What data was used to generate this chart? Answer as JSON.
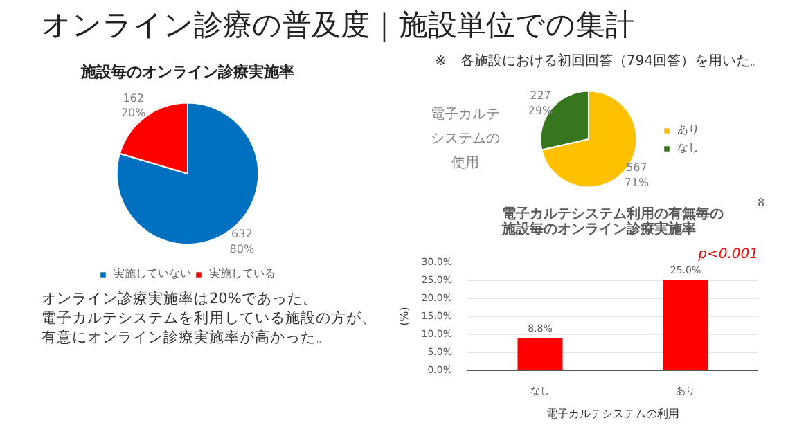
{
  "chart_data": [
    {
      "type": "other",
      "title": "オンライン診療の普及度｜施設単位での集計",
      "annotations": [
        "※　各施設における初回回答（794回答）を用いた。",
        "オンライン診療実施率は20%であった。",
        "電子カルテシステムを利用している施設の方が、",
        "有意にオンライン診療実施率が高かった。",
        "8"
      ]
    },
    {
      "type": "pie",
      "title": "施設毎のオンライン診療実施率",
      "categories": [
        "実施していない",
        "実施している"
      ],
      "values": [
        632,
        162
      ],
      "colors": [
        "#0070c0",
        "#ff0000"
      ],
      "value_labels": [
        "632\n80%",
        "162\n20%"
      ],
      "legend": "bottom"
    },
    {
      "type": "pie",
      "title": "電子カルテシステムの使用",
      "categories": [
        "あり",
        "なし"
      ],
      "values": [
        567,
        227
      ],
      "colors": [
        "#ffc000",
        "#38761d"
      ],
      "value_labels": [
        "567\n71%",
        "227\n29%"
      ],
      "legend": "right"
    },
    {
      "type": "bar",
      "title": "電子カルテシステム利用の有無毎の施設毎のオンライン診療実施率",
      "categories": [
        "なし",
        "あり"
      ],
      "values": [
        8.8,
        25.0
      ],
      "color": "#ff0000",
      "value_labels": [
        "8.8%",
        "25.0%"
      ],
      "xlabel": "電子カルテシステムの利用",
      "ylabel": "(%)",
      "ylim": [
        0,
        30
      ],
      "yticks": [
        {
          "value": 0,
          "label": "0.0%"
        },
        {
          "value": 5,
          "label": "5.0%"
        },
        {
          "value": 10,
          "label": "10.0%"
        },
        {
          "value": 15,
          "label": "15.0%"
        },
        {
          "value": 20,
          "label": "20.0%"
        },
        {
          "value": 25,
          "label": "25.0%"
        },
        {
          "value": 30,
          "label": "30.0%"
        }
      ],
      "grid": "y",
      "annotations": [
        "p<0.001"
      ]
    }
  ]
}
